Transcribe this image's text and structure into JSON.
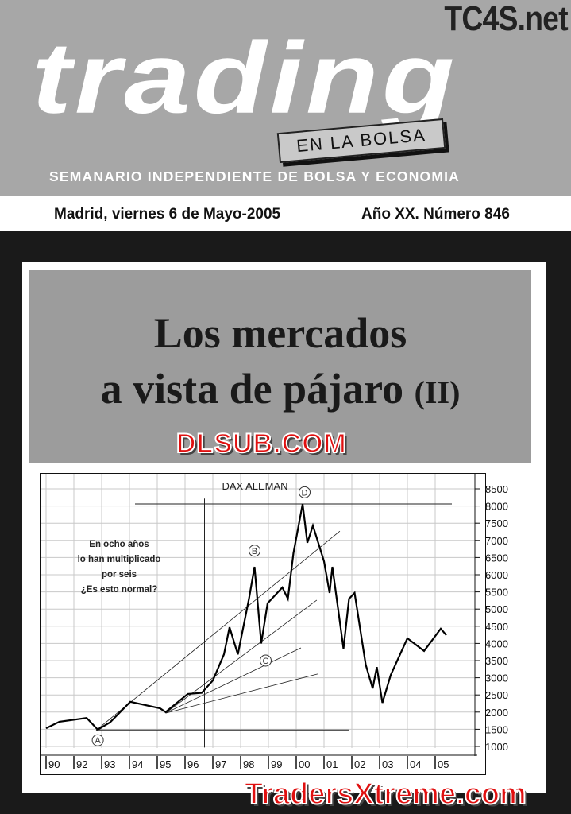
{
  "masthead": {
    "logo": "trading",
    "tagline_box": "EN LA BOLSA",
    "subtitle": "SEMANARIO INDEPENDIENTE DE BOLSA Y ECONOMIA",
    "watermark_top": "TC4S.net"
  },
  "issue": {
    "date": "Madrid, viernes 6 de Mayo-2005",
    "number": "Año XX. Número 846"
  },
  "headline": {
    "line1": "Los mercados",
    "line2": "a vista de pájaro",
    "suffix": "(II)"
  },
  "watermarks": {
    "mid": "DLSUB.COM",
    "bottom": "TradersXtreme.com"
  },
  "colors": {
    "header_gray": "#a7a7a7",
    "title_box": "#9c9c9c",
    "watermark_red": "#e01010"
  },
  "chart_data": {
    "type": "line",
    "title": "DAX ALEMAN",
    "annotation": [
      "En ocho años",
      "lo han multiplicado",
      "por seis",
      "¿Es esto normal?"
    ],
    "x_tick_labels": [
      "90",
      "92",
      "93",
      "94",
      "95",
      "96",
      "97",
      "98",
      "99",
      "00",
      "01",
      "02",
      "03",
      "04",
      "05"
    ],
    "y_ticks": [
      1000,
      1500,
      2000,
      2500,
      3000,
      3500,
      4000,
      4500,
      5000,
      5500,
      6000,
      6500,
      7000,
      7500,
      8000,
      8500
    ],
    "ylim": [
      1000,
      8500
    ],
    "grid": true,
    "series": [
      {
        "x": [
          0,
          0.48,
          1.46,
          1.86,
          2.3,
          3.03,
          4.1,
          4.3,
          5.1,
          5.6,
          6.0,
          6.4,
          6.6,
          6.9,
          7.3,
          7.5,
          7.74,
          7.97,
          8.5,
          8.7,
          8.9,
          9.23,
          9.4,
          9.6,
          10.0,
          10.2,
          10.3,
          10.7,
          10.9,
          11.1,
          11.5,
          11.75,
          11.9,
          12.1,
          12.4,
          13.0,
          13.6,
          14.2,
          14.4
        ],
        "y": [
          1530,
          1720,
          1830,
          1490,
          1700,
          2300,
          2110,
          2000,
          2530,
          2560,
          2920,
          3680,
          4470,
          3680,
          5300,
          6230,
          4000,
          5170,
          5630,
          5300,
          6630,
          8060,
          6930,
          7430,
          6390,
          5470,
          6230,
          3850,
          5300,
          5470,
          3380,
          2690,
          3310,
          2270,
          3080,
          4150,
          3780,
          4430,
          4240
        ]
      }
    ],
    "points": [
      {
        "label": "A",
        "x": 1.86,
        "y": 1180
      },
      {
        "label": "B",
        "x": 7.5,
        "y": 6700
      },
      {
        "label": "C",
        "x": 7.9,
        "y": 3500
      },
      {
        "label": "D",
        "x": 9.3,
        "y": 8400
      }
    ],
    "trendlines": [
      [
        1.8,
        1470,
        10.57,
        7270
      ],
      [
        4.3,
        1970,
        9.74,
        5260
      ],
      [
        4.3,
        1970,
        9.17,
        3870
      ],
      [
        4.3,
        1970,
        9.77,
        3110
      ]
    ],
    "hlines": [
      [
        3.2,
        14.6,
        8060
      ],
      [
        1.8,
        10.9,
        1480
      ]
    ],
    "vline": {
      "x": 5.7,
      "y": [
        1200,
        8100
      ]
    }
  }
}
